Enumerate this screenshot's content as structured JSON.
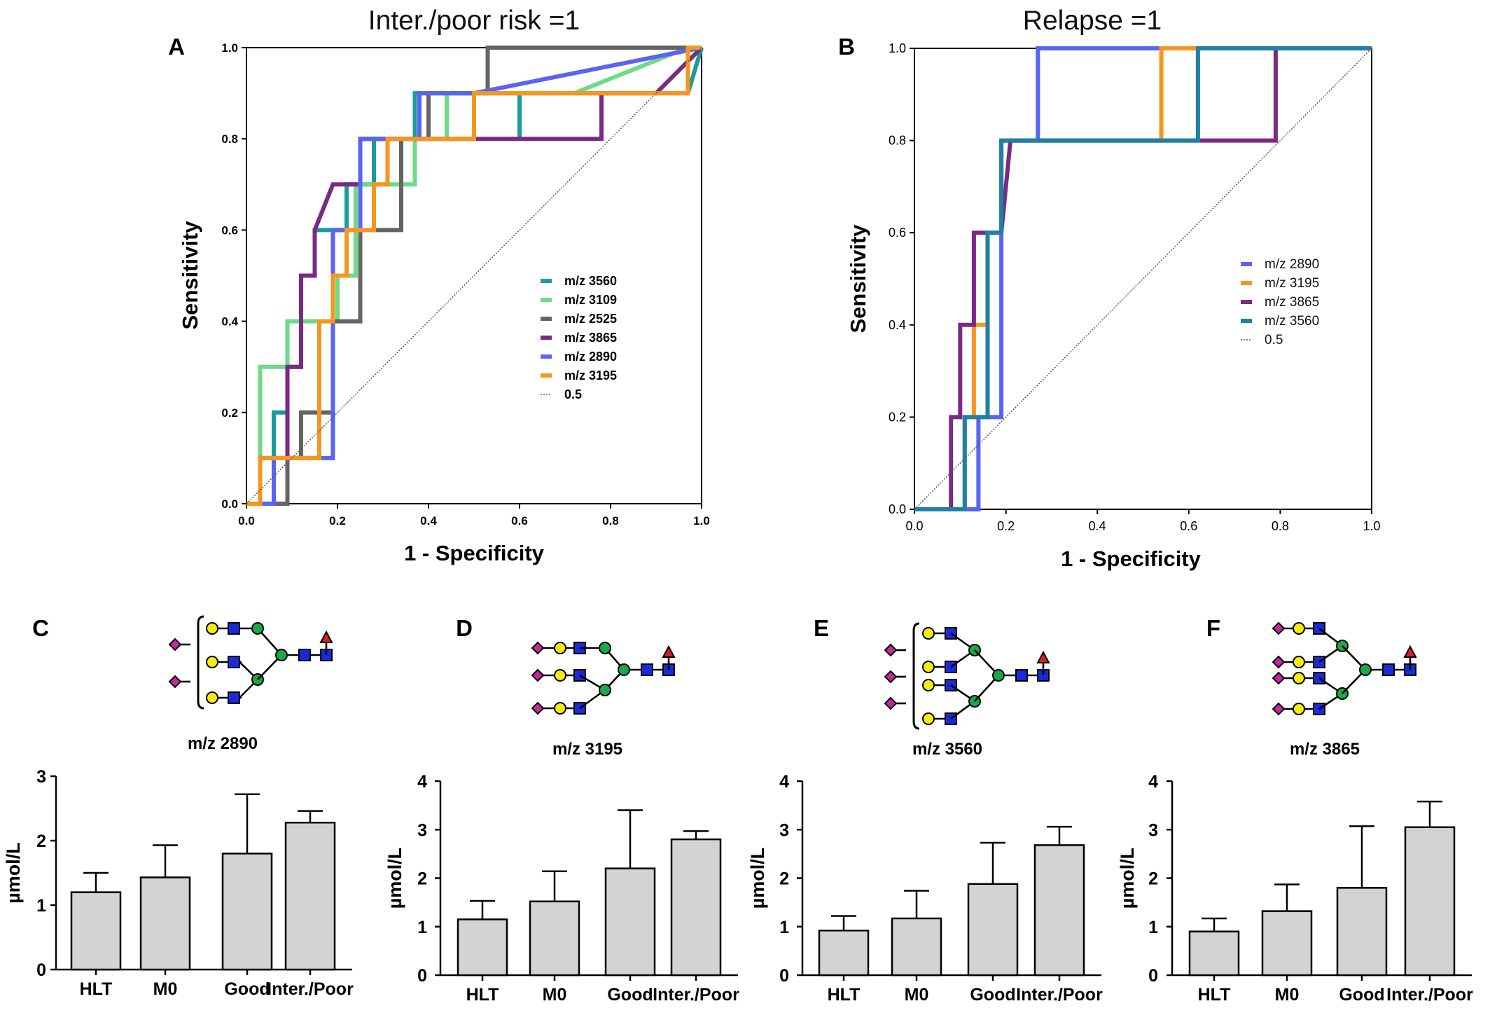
{
  "colors": {
    "m3560": "#1a9c9c",
    "m3109": "#6ddb85",
    "m2525": "#646464",
    "m3865": "#7a2a83",
    "m2890": "#5a63f2",
    "m3195": "#f7961e",
    "m3560B": "#2080a4",
    "bar": "#d3d3d3",
    "glyco_gal": "#f5ea14",
    "glyco_glcnac": "#1a2ad6",
    "glyco_man": "#1aa84c",
    "glyco_neu": "#c12a9c",
    "glyco_fuc": "#d81e1e"
  },
  "chart_data": [
    {
      "panel": "A",
      "type": "line",
      "title": "Inter./poor risk =1",
      "xlabel": "1 - Specificity",
      "ylabel": "Sensitivity",
      "xlim": [
        0,
        1
      ],
      "ylim": [
        0,
        1
      ],
      "xticks": [
        "0.0",
        "0.2",
        "0.4",
        "0.6",
        "0.8",
        "1.0"
      ],
      "yticks": [
        "0.0",
        "0.2",
        "0.4",
        "0.6",
        "0.8",
        "1.0"
      ],
      "legend_position": "center-right",
      "series": [
        {
          "name": "m/z 3560",
          "color_key": "m3560",
          "points": [
            [
              0,
              0
            ],
            [
              0.06,
              0
            ],
            [
              0.06,
              0.2
            ],
            [
              0.09,
              0.2
            ],
            [
              0.09,
              0.3
            ],
            [
              0.12,
              0.3
            ],
            [
              0.12,
              0.5
            ],
            [
              0.15,
              0.5
            ],
            [
              0.15,
              0.6
            ],
            [
              0.22,
              0.6
            ],
            [
              0.22,
              0.7
            ],
            [
              0.28,
              0.7
            ],
            [
              0.28,
              0.8
            ],
            [
              0.37,
              0.8
            ],
            [
              0.37,
              0.9
            ],
            [
              0.6,
              0.9
            ],
            [
              0.6,
              0.8
            ],
            [
              0.6,
              0.9
            ],
            [
              0.97,
              0.9
            ],
            [
              1,
              1
            ]
          ]
        },
        {
          "name": "m/z 3109",
          "color_key": "m3109",
          "points": [
            [
              0.03,
              0
            ],
            [
              0.03,
              0.3
            ],
            [
              0.09,
              0.3
            ],
            [
              0.09,
              0.4
            ],
            [
              0.2,
              0.4
            ],
            [
              0.2,
              0.5
            ],
            [
              0.24,
              0.5
            ],
            [
              0.24,
              0.7
            ],
            [
              0.37,
              0.7
            ],
            [
              0.37,
              0.8
            ],
            [
              0.44,
              0.8
            ],
            [
              0.44,
              0.9
            ],
            [
              0.72,
              0.9
            ],
            [
              0.97,
              1
            ],
            [
              1,
              1
            ]
          ]
        },
        {
          "name": "m/z 2525",
          "color_key": "m2525",
          "points": [
            [
              0,
              0
            ],
            [
              0.09,
              0
            ],
            [
              0.09,
              0.1
            ],
            [
              0.12,
              0.1
            ],
            [
              0.12,
              0.2
            ],
            [
              0.19,
              0.2
            ],
            [
              0.19,
              0.4
            ],
            [
              0.25,
              0.4
            ],
            [
              0.25,
              0.6
            ],
            [
              0.34,
              0.6
            ],
            [
              0.34,
              0.8
            ],
            [
              0.4,
              0.8
            ],
            [
              0.4,
              0.9
            ],
            [
              0.53,
              0.9
            ],
            [
              0.53,
              1
            ],
            [
              1,
              1
            ]
          ]
        },
        {
          "name": "m/z 3865",
          "color_key": "m3865",
          "points": [
            [
              0,
              0
            ],
            [
              0.03,
              0
            ],
            [
              0.03,
              0.1
            ],
            [
              0.09,
              0.1
            ],
            [
              0.09,
              0.3
            ],
            [
              0.12,
              0.3
            ],
            [
              0.12,
              0.5
            ],
            [
              0.15,
              0.5
            ],
            [
              0.15,
              0.6
            ],
            [
              0.19,
              0.7
            ],
            [
              0.25,
              0.7
            ],
            [
              0.25,
              0.8
            ],
            [
              0.78,
              0.8
            ],
            [
              0.78,
              0.9
            ],
            [
              0.9,
              0.9
            ],
            [
              1,
              1
            ]
          ]
        },
        {
          "name": "m/z 2890",
          "color_key": "m2890",
          "points": [
            [
              0,
              0
            ],
            [
              0.06,
              0
            ],
            [
              0.06,
              0.1
            ],
            [
              0.16,
              0.1
            ],
            [
              0.16,
              0.1
            ],
            [
              0.19,
              0.1
            ],
            [
              0.19,
              0.6
            ],
            [
              0.25,
              0.6
            ],
            [
              0.25,
              0.8
            ],
            [
              0.38,
              0.8
            ],
            [
              0.38,
              0.9
            ],
            [
              0.5,
              0.9
            ],
            [
              0.5,
              0.9
            ],
            [
              1,
              1
            ]
          ]
        },
        {
          "name": "m/z 3195",
          "color_key": "m3195",
          "points": [
            [
              0,
              0
            ],
            [
              0.03,
              0
            ],
            [
              0.03,
              0.1
            ],
            [
              0.16,
              0.1
            ],
            [
              0.16,
              0.4
            ],
            [
              0.19,
              0.4
            ],
            [
              0.19,
              0.5
            ],
            [
              0.22,
              0.5
            ],
            [
              0.22,
              0.6
            ],
            [
              0.28,
              0.6
            ],
            [
              0.28,
              0.7
            ],
            [
              0.31,
              0.7
            ],
            [
              0.31,
              0.8
            ],
            [
              0.5,
              0.8
            ],
            [
              0.5,
              0.9
            ],
            [
              0.97,
              0.9
            ],
            [
              0.97,
              1
            ],
            [
              1,
              1
            ]
          ]
        },
        {
          "name": "0.5",
          "style": "dotted",
          "points": [
            [
              0,
              0
            ],
            [
              1,
              1
            ]
          ]
        }
      ]
    },
    {
      "panel": "B",
      "type": "line",
      "title": "Relapse =1",
      "xlabel": "1 - Specificity",
      "ylabel": "Sensitivity",
      "xlim": [
        0,
        1
      ],
      "ylim": [
        0,
        1
      ],
      "xticks": [
        "0.0",
        "0.2",
        "0.4",
        "0.6",
        "0.8",
        "1.0"
      ],
      "yticks": [
        "0.0",
        "0.2",
        "0.4",
        "0.6",
        "0.8",
        "1.0"
      ],
      "legend_position": "center-right",
      "series": [
        {
          "name": "m/z 2890",
          "color_key": "m2890",
          "points": [
            [
              0,
              0
            ],
            [
              0.14,
              0
            ],
            [
              0.14,
              0.2
            ],
            [
              0.19,
              0.2
            ],
            [
              0.19,
              0.8
            ],
            [
              0.27,
              0.8
            ],
            [
              0.27,
              1
            ],
            [
              1,
              1
            ]
          ]
        },
        {
          "name": "m/z 3195",
          "color_key": "m3195",
          "points": [
            [
              0,
              0
            ],
            [
              0.11,
              0
            ],
            [
              0.11,
              0.2
            ],
            [
              0.13,
              0.2
            ],
            [
              0.13,
              0.4
            ],
            [
              0.16,
              0.4
            ],
            [
              0.16,
              0.6
            ],
            [
              0.19,
              0.6
            ],
            [
              0.19,
              0.8
            ],
            [
              0.54,
              0.8
            ],
            [
              0.54,
              1
            ],
            [
              1,
              1
            ]
          ]
        },
        {
          "name": "m/z 3865",
          "color_key": "m3865",
          "points": [
            [
              0,
              0
            ],
            [
              0.08,
              0
            ],
            [
              0.08,
              0.2
            ],
            [
              0.1,
              0.2
            ],
            [
              0.1,
              0.4
            ],
            [
              0.13,
              0.4
            ],
            [
              0.13,
              0.6
            ],
            [
              0.19,
              0.6
            ],
            [
              0.21,
              0.8
            ],
            [
              0.79,
              0.8
            ],
            [
              0.79,
              1
            ],
            [
              1,
              1
            ]
          ]
        },
        {
          "name": "m/z 3560",
          "color_key": "m3560B",
          "points": [
            [
              0,
              0
            ],
            [
              0.11,
              0
            ],
            [
              0.11,
              0.2
            ],
            [
              0.16,
              0.2
            ],
            [
              0.16,
              0.6
            ],
            [
              0.19,
              0.6
            ],
            [
              0.19,
              0.8
            ],
            [
              0.62,
              0.8
            ],
            [
              0.62,
              1
            ],
            [
              1,
              1
            ]
          ]
        },
        {
          "name": "0.5",
          "style": "dotted",
          "points": [
            [
              0,
              0
            ],
            [
              1,
              1
            ]
          ]
        }
      ]
    },
    {
      "panel": "C",
      "type": "bar",
      "glycan": "m/z 2890",
      "ylabel": "µmol/L",
      "ylim": [
        0,
        3
      ],
      "yticks": [
        "0",
        "1",
        "2",
        "3"
      ],
      "categories": [
        "HLT",
        "M0",
        "Good",
        "Inter./Poor"
      ],
      "values": [
        1.2,
        1.43,
        1.8,
        2.28
      ],
      "errors": [
        0.3,
        0.5,
        0.92,
        0.18
      ]
    },
    {
      "panel": "D",
      "type": "bar",
      "glycan": "m/z 3195",
      "ylabel": "µmol/L",
      "ylim": [
        0,
        4
      ],
      "yticks": [
        "0",
        "1",
        "2",
        "3",
        "4"
      ],
      "categories": [
        "HLT",
        "M0",
        "Good",
        "Inter./Poor"
      ],
      "values": [
        1.15,
        1.52,
        2.2,
        2.8
      ],
      "errors": [
        0.38,
        0.62,
        1.2,
        0.17
      ]
    },
    {
      "panel": "E",
      "type": "bar",
      "glycan": "m/z 3560",
      "ylabel": "µmol/L",
      "ylim": [
        0,
        4
      ],
      "yticks": [
        "0",
        "1",
        "2",
        "3",
        "4"
      ],
      "categories": [
        "HLT",
        "M0",
        "Good",
        "Inter./Poor"
      ],
      "values": [
        0.92,
        1.17,
        1.88,
        2.68
      ],
      "errors": [
        0.3,
        0.57,
        0.85,
        0.38
      ]
    },
    {
      "panel": "F",
      "type": "bar",
      "glycan": "m/z 3865",
      "ylabel": "µmol/L",
      "ylim": [
        0,
        4
      ],
      "yticks": [
        "0",
        "1",
        "2",
        "3",
        "4"
      ],
      "categories": [
        "HLT",
        "M0",
        "Good",
        "Inter./Poor"
      ],
      "values": [
        0.9,
        1.32,
        1.8,
        3.05
      ],
      "errors": [
        0.27,
        0.55,
        1.27,
        0.53
      ]
    }
  ]
}
